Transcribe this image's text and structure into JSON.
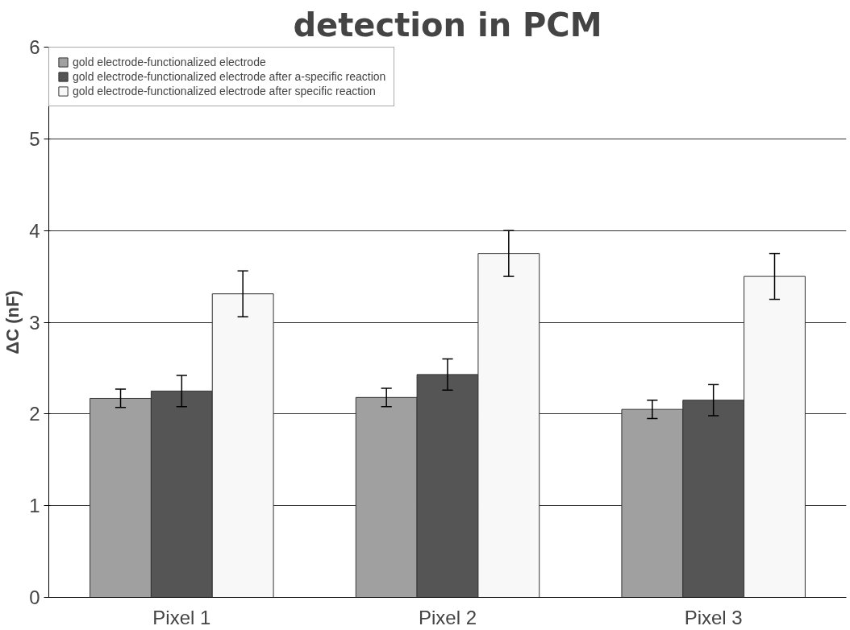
{
  "chart_data": {
    "type": "bar",
    "title": "detection in PCM",
    "ylabel": "ΔC (nF)",
    "categories": [
      "Pixel 1",
      "Pixel 2",
      "Pixel 3"
    ],
    "series": [
      {
        "name": "gold electrode-functionalized electrode",
        "color": "#a0a0a0",
        "values": [
          2.17,
          2.18,
          2.05
        ],
        "errors": [
          0.1,
          0.1,
          0.1
        ]
      },
      {
        "name": "gold electrode-functionalized electrode after a-specific reaction",
        "color": "#555555",
        "values": [
          2.25,
          2.43,
          2.15
        ],
        "errors": [
          0.17,
          0.17,
          0.17
        ]
      },
      {
        "name": "gold electrode-functionalized electrode after specific reaction",
        "color": "#f8f8f8",
        "values": [
          3.31,
          3.75,
          3.5
        ],
        "errors": [
          0.25,
          0.25,
          0.25
        ]
      }
    ],
    "ylim": [
      0,
      6
    ],
    "yticks": [
      0,
      1,
      2,
      3,
      4,
      5,
      6
    ],
    "grid": "y",
    "legend": "top left"
  }
}
